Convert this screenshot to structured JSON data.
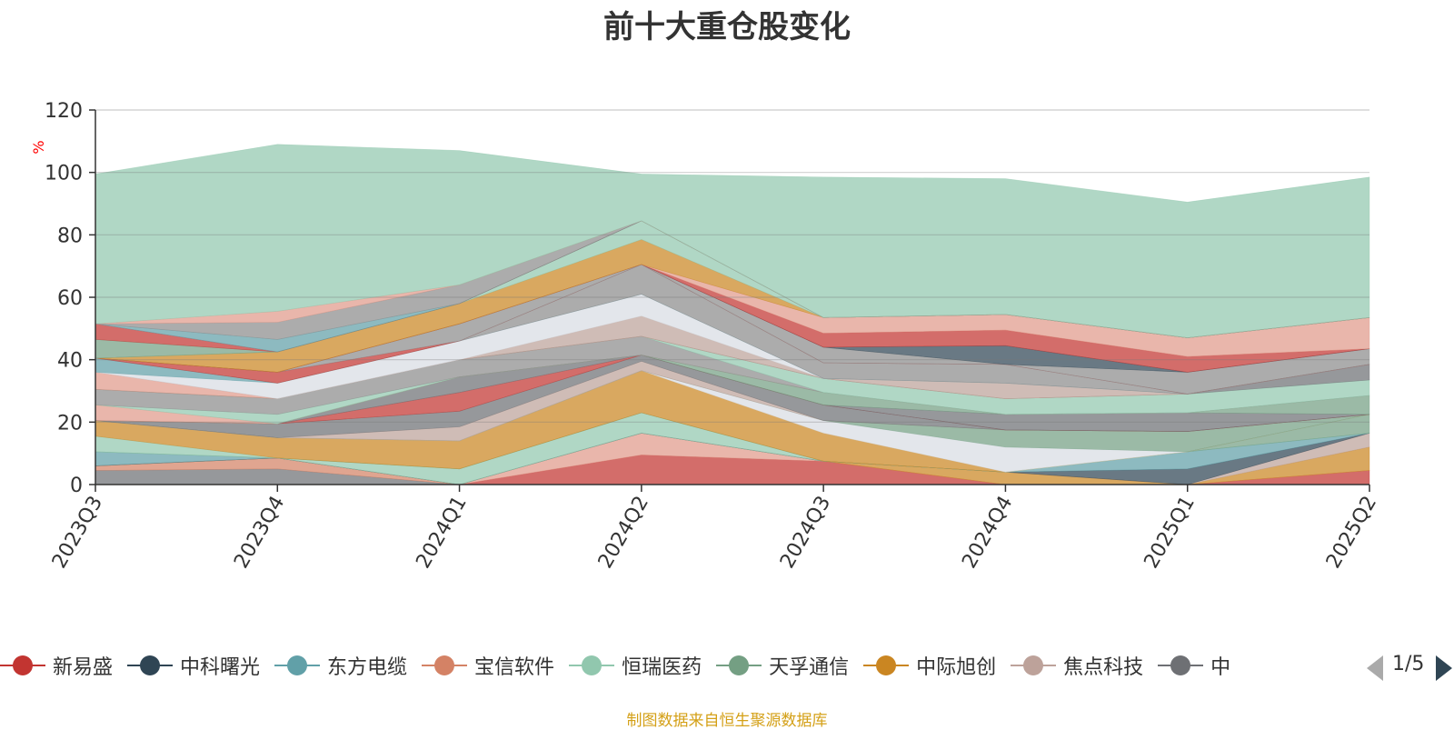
{
  "title": "前十大重仓股变化",
  "footer": "制图数据来自恒生聚源数据库",
  "pager": {
    "text": "1/5"
  },
  "legend": [
    {
      "name": "新易盛",
      "color": "#c23531"
    },
    {
      "name": "中科曙光",
      "color": "#2f4554"
    },
    {
      "name": "东方电缆",
      "color": "#61a0a8"
    },
    {
      "name": "宝信软件",
      "color": "#d48265"
    },
    {
      "name": "恒瑞医药",
      "color": "#91c7ae"
    },
    {
      "name": "天孚通信",
      "color": "#749f83"
    },
    {
      "name": "中际旭创",
      "color": "#ca8622"
    },
    {
      "name": "焦点科技",
      "color": "#bda29a"
    },
    {
      "name": "中",
      "color": "#6e7074"
    }
  ],
  "chart_data": {
    "type": "area",
    "stacked": true,
    "title": "前十大重仓股变化",
    "ylabel": "%",
    "ylim": [
      0,
      120
    ],
    "yticks": [
      0,
      20,
      40,
      60,
      80,
      100,
      120
    ],
    "categories": [
      "2023Q3",
      "2023Q4",
      "2024Q1",
      "2024Q2",
      "2024Q3",
      "2024Q4",
      "2025Q1",
      "2025Q2"
    ],
    "grid": true,
    "series": [
      {
        "color": "#6e7074",
        "values": [
          4.5,
          5,
          0,
          0,
          0,
          0,
          0,
          0
        ]
      },
      {
        "color": "#d48265",
        "values": [
          1.5,
          3.5,
          0,
          0,
          0,
          0,
          0,
          0
        ]
      },
      {
        "color": "#c23531",
        "values": [
          0,
          0,
          0,
          9.5,
          7.5,
          0,
          0,
          4.5
        ]
      },
      {
        "color": "#e09a8a",
        "values": [
          0,
          0,
          0,
          7,
          0,
          0,
          0,
          0
        ]
      },
      {
        "color": "#ca8622",
        "values": [
          0,
          0,
          0,
          0,
          0,
          4,
          0,
          7.5
        ]
      },
      {
        "color": "#bda29a",
        "values": [
          0,
          0,
          0,
          0,
          0,
          0,
          0,
          4.5
        ]
      },
      {
        "color": "#2f4554",
        "values": [
          0,
          0,
          0,
          0,
          0,
          0,
          5,
          0
        ]
      },
      {
        "color": "#61a0a8",
        "values": [
          4.5,
          0,
          0,
          0,
          0,
          0,
          5.5,
          0
        ]
      },
      {
        "color": "#91c7ae",
        "values": [
          0,
          0,
          5,
          6.5,
          0,
          0,
          0,
          0
        ]
      },
      {
        "color": "#749f83",
        "values": [
          0,
          0,
          0,
          0,
          0,
          0,
          0,
          6
        ]
      },
      {
        "color": "#91c7ae",
        "values": [
          5,
          0,
          0,
          0,
          0,
          0,
          0,
          0
        ]
      },
      {
        "color": "#ca8622",
        "values": [
          5,
          6.5,
          9,
          13.5,
          9,
          0,
          0,
          0
        ]
      },
      {
        "color": "#d8dde3",
        "values": [
          0,
          0,
          0,
          0,
          4,
          8,
          0,
          0
        ]
      },
      {
        "color": "#749f83",
        "values": [
          0,
          0,
          0,
          0,
          0,
          5.5,
          6.5,
          0
        ]
      },
      {
        "color": "#bda29a",
        "values": [
          0,
          0,
          4.5,
          3,
          0,
          0,
          0,
          0
        ]
      },
      {
        "color": "#6e7074",
        "values": [
          0,
          4.5,
          5,
          2,
          5,
          0,
          0,
          0
        ]
      },
      {
        "color": "#c23531",
        "values": [
          0,
          0,
          6,
          0,
          0,
          0,
          0,
          0
        ]
      },
      {
        "color": "#6e7074",
        "values": [
          0,
          0,
          5,
          0,
          0,
          5,
          6,
          0
        ]
      },
      {
        "color": "#749f83",
        "values": [
          0,
          0,
          0,
          0,
          4,
          0,
          0,
          6
        ]
      },
      {
        "color": "#e09a8a",
        "values": [
          5,
          0,
          0,
          0,
          0,
          0,
          0,
          0
        ]
      },
      {
        "color": "#91c7ae",
        "values": [
          0,
          3,
          0,
          0,
          0,
          0,
          0,
          0
        ]
      },
      {
        "color": "#8c8c8c",
        "values": [
          5,
          5,
          5.5,
          6,
          0,
          0,
          0,
          0
        ]
      },
      {
        "color": "#91c7ae",
        "values": [
          0,
          0,
          0,
          0,
          4.5,
          5,
          6,
          5
        ]
      },
      {
        "color": "#6e7074",
        "values": [
          0,
          0,
          0,
          0,
          0,
          0,
          0,
          5
        ]
      },
      {
        "color": "#e09a8a",
        "values": [
          5.5,
          0,
          0,
          0,
          0,
          0,
          0,
          0
        ]
      },
      {
        "color": "#bda29a",
        "values": [
          0,
          0,
          0,
          6.5,
          0,
          5,
          0,
          0
        ]
      },
      {
        "color": "#d8dde3",
        "values": [
          0,
          5,
          6,
          7,
          0,
          0,
          0,
          0
        ]
      },
      {
        "color": "#61a0a8",
        "values": [
          4.5,
          0,
          0,
          0,
          0,
          0,
          0,
          0
        ]
      },
      {
        "color": "#8c8c8c",
        "values": [
          0,
          0,
          0,
          9.5,
          5,
          6,
          0,
          0
        ]
      },
      {
        "color": "#c23531",
        "values": [
          0,
          3.5,
          0,
          0,
          0,
          0,
          0,
          0
        ]
      },
      {
        "color": "#8c8c8c",
        "values": [
          0,
          0,
          5.5,
          0,
          5,
          0,
          7,
          5
        ]
      },
      {
        "color": "#2f4554",
        "values": [
          0,
          0,
          0,
          0,
          0,
          6,
          0,
          0
        ]
      },
      {
        "color": "#c23531",
        "values": [
          0,
          0,
          0,
          0,
          4.5,
          5,
          5,
          0
        ]
      },
      {
        "color": "#e09a8a",
        "values": [
          0,
          0,
          0,
          0,
          5,
          5,
          6,
          10
        ]
      },
      {
        "color": "#ca8622",
        "values": [
          0,
          6.5,
          6.5,
          8,
          0,
          0,
          0,
          0
        ]
      },
      {
        "color": "#91c7ae",
        "values": [
          0,
          0,
          0,
          6,
          0,
          0,
          0,
          0
        ]
      },
      {
        "color": "#749f83",
        "values": [
          6,
          0,
          0,
          0,
          0,
          0,
          0,
          0
        ]
      },
      {
        "color": "#c23531",
        "values": [
          5,
          0,
          0,
          0,
          0,
          0,
          0,
          0
        ]
      },
      {
        "color": "#61a0a8",
        "values": [
          0,
          4,
          0,
          0,
          0,
          0,
          0,
          0
        ]
      },
      {
        "color": "#8c8c8c",
        "values": [
          0,
          5.5,
          6,
          0,
          0,
          0,
          0,
          0
        ]
      },
      {
        "color": "#e09a8a",
        "values": [
          0,
          3.5,
          0,
          0,
          0,
          0,
          0,
          0
        ]
      },
      {
        "color": "#91c7ae",
        "values": [
          48,
          53.5,
          43,
          15,
          45,
          43.5,
          43.5,
          45
        ]
      }
    ]
  }
}
